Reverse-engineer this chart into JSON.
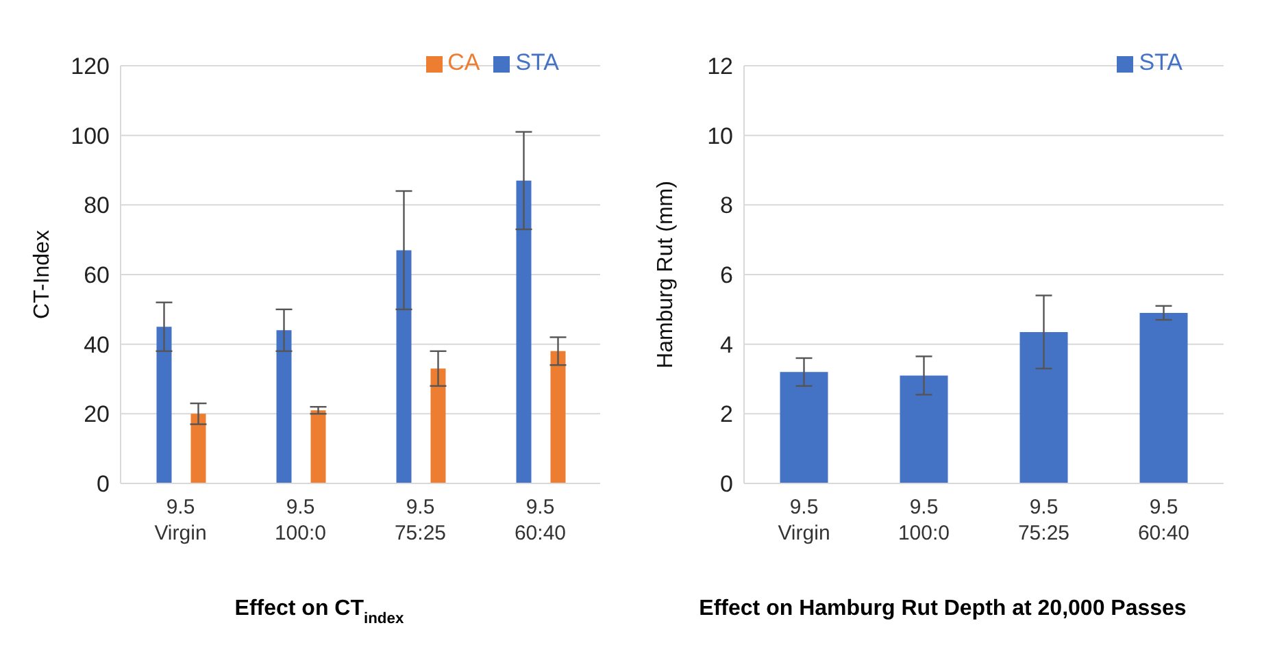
{
  "chart_data": [
    {
      "type": "bar",
      "title": "Effect on CT$_{index}$",
      "ylabel": "CT-Index",
      "categories": [
        "9.5\nVirgin",
        "9.5\n100:0",
        "9.5\n75:25",
        "9.5\n60:40"
      ],
      "series": [
        {
          "name": "STA",
          "color": "#4472c4",
          "values": [
            45,
            44,
            67,
            87
          ],
          "errors": [
            7,
            6,
            17,
            14
          ]
        },
        {
          "name": "CA",
          "color": "#ed7d31",
          "values": [
            20,
            21,
            33,
            38
          ],
          "errors": [
            3,
            1,
            5,
            4
          ]
        }
      ],
      "ylim": [
        0,
        120
      ],
      "yticks": [
        0,
        20,
        40,
        60,
        80,
        100,
        120
      ],
      "grid": "y",
      "legend": "top right"
    },
    {
      "type": "bar",
      "title": "Effect on Hamburg Rut Depth at 20,000 Passes",
      "ylabel": "Hamburg Rut (mm)",
      "categories": [
        "9.5\nVirgin",
        "9.5\n100:0",
        "9.5\n75:25",
        "9.5\n60:40"
      ],
      "series": [
        {
          "name": "STA",
          "color": "#4472c4",
          "values": [
            3.2,
            3.1,
            4.35,
            4.9
          ],
          "errors": [
            0.4,
            0.55,
            1.05,
            0.2
          ]
        }
      ],
      "ylim": [
        0,
        12
      ],
      "yticks": [
        0,
        2,
        4,
        6,
        8,
        10,
        12
      ],
      "grid": "y",
      "legend": "top right"
    }
  ]
}
